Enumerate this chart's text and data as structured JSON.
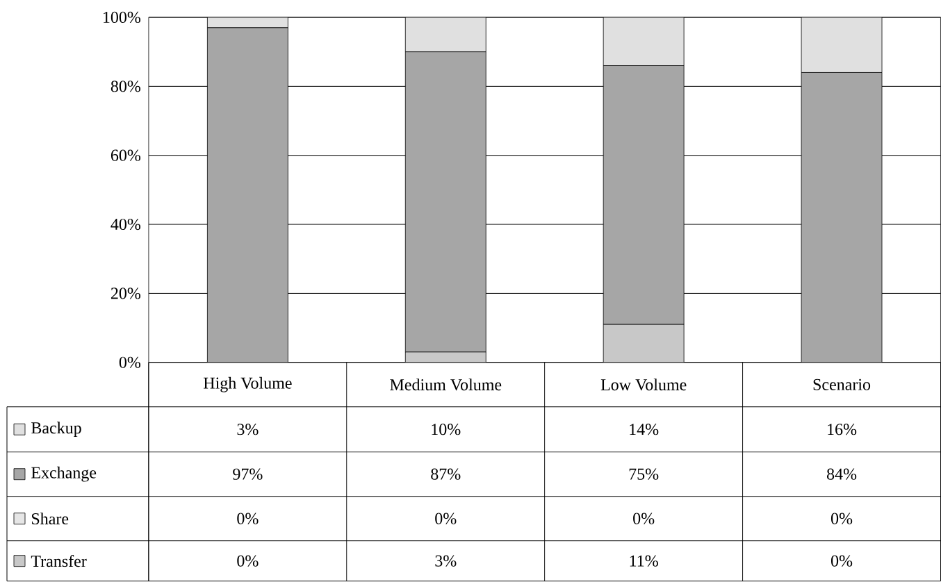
{
  "chart_data": {
    "type": "bar",
    "stacked": true,
    "categories": [
      "High Volume",
      "Medium Volume",
      "Low Volume",
      "Scenario"
    ],
    "series": [
      {
        "name": "Transfer",
        "color": "#c8c8c8",
        "values": [
          0,
          3,
          11,
          0
        ],
        "value_labels": [
          "0%",
          "3%",
          "11%",
          "0%"
        ]
      },
      {
        "name": "Share",
        "color": "#e6e6e6",
        "values": [
          0,
          0,
          0,
          0
        ],
        "value_labels": [
          "0%",
          "0%",
          "0%",
          "0%"
        ]
      },
      {
        "name": "Exchange",
        "color": "#a6a6a6",
        "values": [
          97,
          87,
          75,
          84
        ],
        "value_labels": [
          "97%",
          "87%",
          "75%",
          "84%"
        ]
      },
      {
        "name": "Backup",
        "color": "#e0e0e0",
        "values": [
          3,
          10,
          14,
          16
        ],
        "value_labels": [
          "3%",
          "10%",
          "14%",
          "16%"
        ]
      }
    ],
    "ylim": [
      0,
      100
    ],
    "yticks": [
      {
        "value": 0,
        "label": "0%"
      },
      {
        "value": 20,
        "label": "20%"
      },
      {
        "value": 40,
        "label": "40%"
      },
      {
        "value": 60,
        "label": "60%"
      },
      {
        "value": 80,
        "label": "80%"
      },
      {
        "value": 100,
        "label": "100%"
      }
    ],
    "grid": "y",
    "legend": "bottom"
  }
}
